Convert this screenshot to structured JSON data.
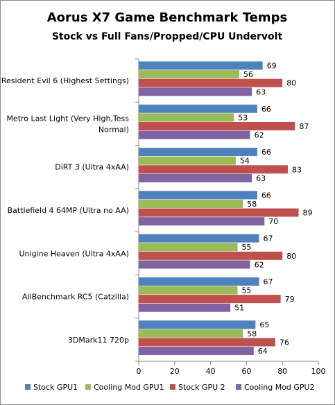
{
  "chart_data": {
    "type": "bar",
    "orientation": "horizontal",
    "title": "Aorus X7 Game Benchmark Temps",
    "subtitle": "Stock vs Full Fans/Propped/CPU Undervolt",
    "categories": [
      [
        "Resident Evil 6 (Highest Settings)"
      ],
      [
        "Metro Last Light (Very High,Tess",
        "Normal)"
      ],
      [
        "DiRT 3 (Ultra 4xAA)"
      ],
      [
        "Battlefield 4 64MP (Ultra no AA)"
      ],
      [
        "Unigine Heaven (Ultra 4xAA)"
      ],
      [
        "AllBenchmark RC5 (Catzilla)"
      ],
      [
        "3DMark11 720p"
      ]
    ],
    "series": [
      {
        "name": "Stock GPU1",
        "color": "#4f81bd",
        "values": [
          69,
          66,
          66,
          66,
          67,
          67,
          65
        ]
      },
      {
        "name": "Cooling Mod GPU1",
        "color": "#9bbb59",
        "values": [
          56,
          53,
          54,
          58,
          55,
          55,
          58
        ]
      },
      {
        "name": "Stock GPU 2",
        "color": "#c0504d",
        "values": [
          80,
          87,
          83,
          89,
          80,
          79,
          76
        ]
      },
      {
        "name": "Cooling Mod GPU2",
        "color": "#8064a2",
        "values": [
          63,
          62,
          63,
          70,
          62,
          51,
          64
        ]
      }
    ],
    "xlim": [
      0,
      100
    ],
    "xticks": [
      "0",
      "20",
      "40",
      "60",
      "80",
      "100"
    ],
    "grid": false,
    "legend_position": "bottom",
    "data_labels": true
  }
}
